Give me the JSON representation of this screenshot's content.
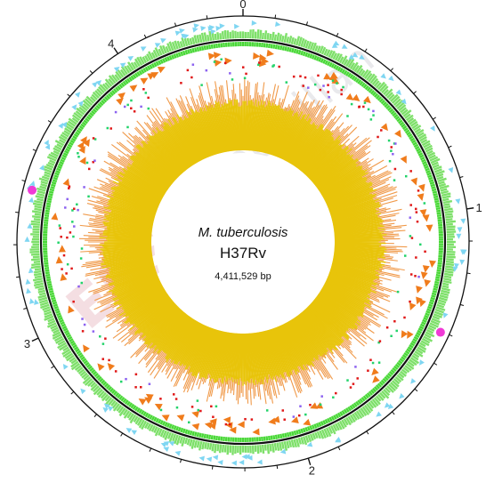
{
  "figure": {
    "organism": "M. tuberculosis",
    "strain": "H37Rv",
    "genome_size": "4,411,529 bp"
  },
  "scale_labels": [
    "0",
    "1",
    "2",
    "3",
    "4"
  ],
  "watermark": {
    "text": "Macmillan",
    "stamp": "ESS"
  },
  "tracks": [
    {
      "name": "outer-features",
      "color": "#7fd6f2"
    },
    {
      "name": "highlight-features",
      "color": "#f03ad6"
    },
    {
      "name": "genes-forward",
      "color": "#7ee06a"
    },
    {
      "name": "genes-reverse",
      "color": "#4ad838"
    },
    {
      "name": "markers-orange",
      "color": "#f07c1c"
    },
    {
      "name": "markers-green",
      "color": "#22d36a"
    },
    {
      "name": "markers-red",
      "color": "#e01818"
    },
    {
      "name": "markers-violet",
      "color": "#8c62f0"
    },
    {
      "name": "gc-skew-outer",
      "color": "#f09a4a"
    },
    {
      "name": "gc-skew-inner",
      "color": "#e8c40a"
    }
  ]
}
